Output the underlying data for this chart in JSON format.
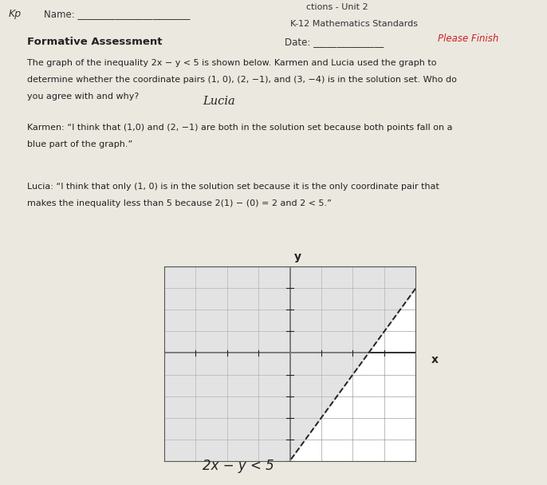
{
  "xlim": [
    -4,
    4
  ],
  "ylim": [
    -5,
    4
  ],
  "grid_color": "#777777",
  "shade_color": "#c8c8c8",
  "line_color": "#222222",
  "paper_color": "#ebe8e0",
  "shade_alpha": 0.5,
  "grid_alpha": 0.7,
  "equation_label": "2x - y < 5"
}
